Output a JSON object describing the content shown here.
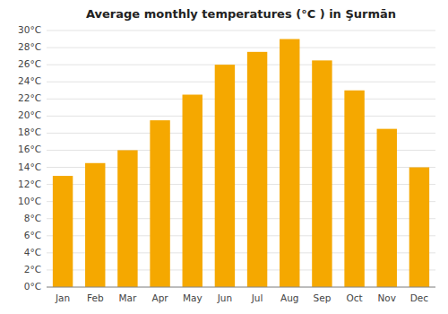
{
  "chart_data": {
    "type": "bar",
    "title": "Average monthly temperatures (°C ) in Şurmān",
    "categories": [
      "Jan",
      "Feb",
      "Mar",
      "Apr",
      "May",
      "Jun",
      "Jul",
      "Aug",
      "Sep",
      "Oct",
      "Nov",
      "Dec"
    ],
    "values": [
      13.0,
      14.5,
      16.0,
      19.5,
      22.5,
      26.0,
      27.5,
      29.0,
      26.5,
      23.0,
      18.5,
      14.0
    ],
    "color": "#F5A800",
    "ylim": [
      0,
      30
    ],
    "yticks": [
      {
        "value": 0,
        "label": "0°C"
      },
      {
        "value": 2,
        "label": "2°C"
      },
      {
        "value": 4,
        "label": "4°C"
      },
      {
        "value": 6,
        "label": "6°C"
      },
      {
        "value": 8,
        "label": "8°C"
      },
      {
        "value": 10,
        "label": "10°C"
      },
      {
        "value": 12,
        "label": "12°C"
      },
      {
        "value": 14,
        "label": "14°C"
      },
      {
        "value": 16,
        "label": "16°C"
      },
      {
        "value": 18,
        "label": "18°C"
      },
      {
        "value": 20,
        "label": "20°C"
      },
      {
        "value": 22,
        "label": "22°C"
      },
      {
        "value": 24,
        "label": "24°C"
      },
      {
        "value": 26,
        "label": "26°C"
      },
      {
        "value": 28,
        "label": "28°C"
      },
      {
        "value": 30,
        "label": "30°C"
      }
    ],
    "grid": true
  }
}
